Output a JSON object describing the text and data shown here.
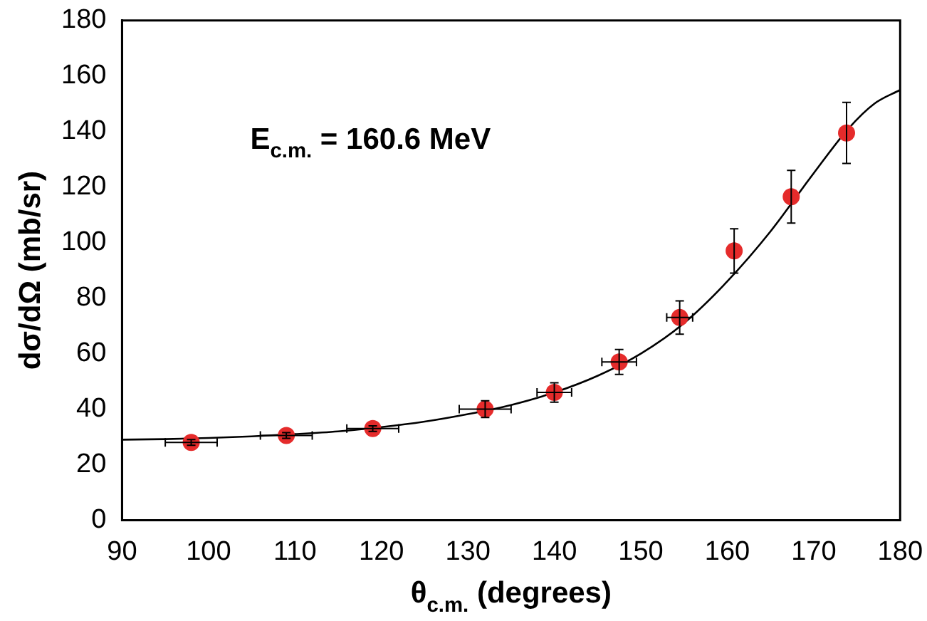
{
  "chart_data": {
    "type": "scatter",
    "xlabel": "θ$_{c.m.}$ (degrees)",
    "ylabel": "dσ/dΩ (mb/sr)",
    "annotations": [
      "E$_{c.m.}$ = 160.6 MeV"
    ],
    "xlim": [
      90,
      180
    ],
    "xticks": [
      90,
      100,
      110,
      120,
      130,
      140,
      150,
      160,
      170,
      180
    ],
    "ylim": [
      0,
      180
    ],
    "yticks": [
      0,
      20,
      40,
      60,
      80,
      100,
      120,
      140,
      160,
      180
    ],
    "grid": false,
    "legend": false,
    "marker": "circle",
    "series": [
      {
        "type": "scatter",
        "color": "#e52b2b",
        "x": [
          98,
          109,
          119,
          132,
          140,
          147.5,
          154.5,
          160.8,
          167.4,
          173.8
        ],
        "values": [
          28,
          30.5,
          33,
          40,
          46,
          57,
          73,
          97,
          116.5,
          139.5
        ],
        "errors": [
          1,
          1,
          1,
          3,
          3.5,
          4.5,
          6,
          8,
          9.5,
          11
        ],
        "xerrors": [
          3,
          3,
          3,
          3,
          2,
          2,
          1.5,
          null,
          null,
          null
        ]
      },
      {
        "type": "line",
        "color": "#000000",
        "marker": "none",
        "x": [
          90,
          95,
          100,
          105,
          110,
          115,
          120,
          125,
          130,
          135,
          140,
          145,
          150,
          155,
          160,
          165,
          170,
          174,
          177,
          180
        ],
        "values": [
          29,
          29.2,
          29.6,
          30.2,
          31,
          32,
          33.5,
          35.5,
          38.2,
          41.5,
          46,
          52,
          60,
          71,
          86,
          104,
          125,
          141,
          150,
          155
        ]
      }
    ]
  }
}
